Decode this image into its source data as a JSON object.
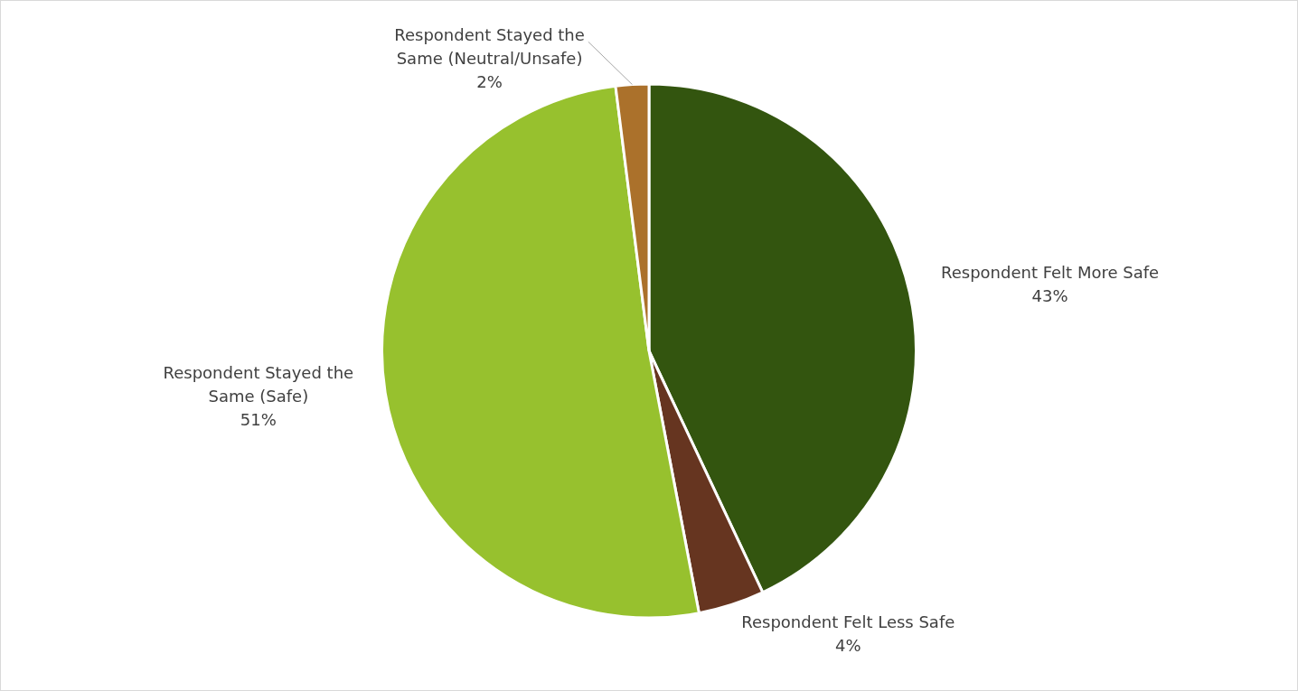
{
  "chart_data": {
    "type": "pie",
    "categories": [
      "Respondent Felt More Safe",
      "Respondent Felt Less Safe",
      "Respondent Stayed the Same (Safe)",
      "Respondent Stayed the Same (Neutral/Unsafe)"
    ],
    "values": [
      43,
      4,
      51,
      2
    ],
    "value_labels": [
      "43%",
      "4%",
      "51%",
      "2%"
    ],
    "colors": [
      "#33550f",
      "#663520",
      "#97c12e",
      "#ab712b"
    ],
    "legend": false
  }
}
